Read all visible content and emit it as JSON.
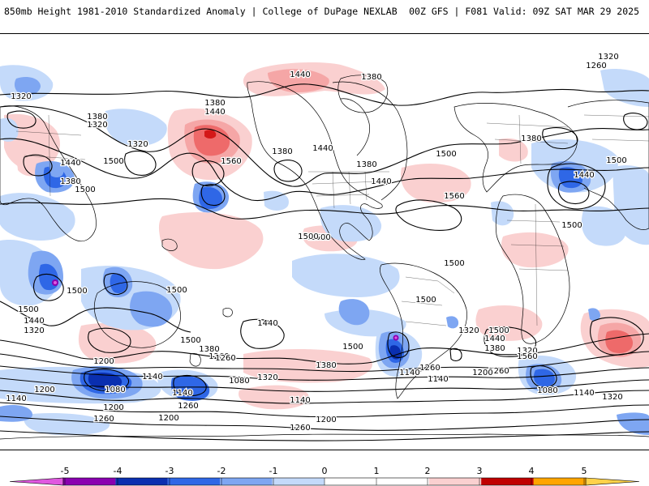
{
  "header": {
    "left": "850mb Height 1981-2010 Standardized Anomaly | College of DuPage NEXLAB",
    "right": "00Z GFS | F081 Valid: 09Z SAT MAR 29 2025"
  },
  "colors": {
    "neg5": "#e058e0",
    "neg4": "#8a00b0",
    "neg3": "#0a2fb0",
    "neg2": "#2f67e6",
    "neg1": "#7ea6f2",
    "neg05": "#c4dafa",
    "zero": "#ffffff",
    "pos05": "#fad0d0",
    "pos1": "#f5a6a6",
    "pos2": "#ee6a6a",
    "pos3": "#d41818",
    "pos4": "#c00000",
    "pos5": "#ffa500",
    "pos5b": "#ffd24a"
  },
  "colorbar": {
    "ticks": [
      "-5",
      "-4",
      "-3",
      "-2",
      "-1",
      "0",
      "1",
      "2",
      "3",
      "4",
      "5"
    ]
  },
  "contour_labels": [
    "1320",
    "1260",
    "1440",
    "1380",
    "1320",
    "1380",
    "1320",
    "1440",
    "1380",
    "1500",
    "1440",
    "1380",
    "1500",
    "1560",
    "1380",
    "1440",
    "1380",
    "1500",
    "1440",
    "1560",
    "1560",
    "1500",
    "1320",
    "1380",
    "1500",
    "1440",
    "1500",
    "1500",
    "1500",
    "1500",
    "1500",
    "1500",
    "1500",
    "1440",
    "1320",
    "1500",
    "1380",
    "1260",
    "1440",
    "1500",
    "1380",
    "1260",
    "1320",
    "1560",
    "1500",
    "1440",
    "1380",
    "1320",
    "1200",
    "1140",
    "1080",
    "1200",
    "1260",
    "1140",
    "1080",
    "1140",
    "1200",
    "1260",
    "1200",
    "1140",
    "1260",
    "1140",
    "1080",
    "1140",
    "1200",
    "1320",
    "1140",
    "1200",
    "1260",
    "1260",
    "1320"
  ]
}
